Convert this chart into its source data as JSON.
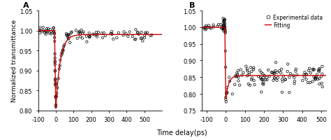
{
  "panel_A": {
    "label": "A",
    "xlim": [
      -100,
      600
    ],
    "ylim": [
      0.8,
      1.05
    ],
    "yticks": [
      0.8,
      0.85,
      0.9,
      0.95,
      1.0,
      1.05
    ],
    "xticks": [
      -100,
      0,
      100,
      200,
      300,
      400,
      500
    ],
    "xticklabels": [
      "-100",
      "0",
      "100",
      "200",
      "300",
      "400",
      "500"
    ],
    "ylabel": "Normalized transmittance",
    "fitting_color": "#cc0000",
    "data_color": "black",
    "scatter_marker": "o",
    "scatter_facecolor": "none",
    "scatter_size": 6,
    "fitting_linewidth": 1.0,
    "baseline_before": 1.0,
    "dip_value": 0.805,
    "recovery_value": 0.99,
    "recovery_tau": 25,
    "noise_pre": 0.004,
    "noise_post": 0.006
  },
  "panel_B": {
    "label": "B",
    "xlim": [
      -125,
      525
    ],
    "ylim": [
      0.75,
      1.05
    ],
    "yticks": [
      0.75,
      0.8,
      0.85,
      0.9,
      0.95,
      1.0,
      1.05
    ],
    "xticks": [
      -100,
      0,
      100,
      200,
      300,
      400,
      500
    ],
    "xticklabels": [
      "-100",
      "0",
      "100",
      "200",
      "300",
      "400",
      "500"
    ],
    "fitting_color": "#cc0000",
    "data_color": "black",
    "scatter_marker": "o",
    "scatter_facecolor": "none",
    "scatter_size": 6,
    "fitting_linewidth": 1.0,
    "baseline_before": 1.0,
    "dip_value": 0.785,
    "recovery_value": 0.855,
    "recovery_tau": 15,
    "noise_pre": 0.012,
    "noise_post": 0.018
  },
  "xlabel": "Time delay(ps)",
  "legend_labels": [
    "Experimental data",
    "Fitting"
  ],
  "legend_line_color": "#cc0000",
  "background_color": "white",
  "ylabel_fontsize": 6.5,
  "tick_fontsize": 6.0,
  "label_fontsize": 8.0,
  "legend_fontsize": 5.5
}
